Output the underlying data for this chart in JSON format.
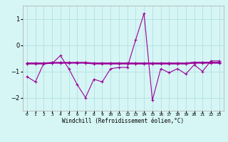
{
  "xlabel": "Windchill (Refroidissement éolien,°C)",
  "background_color": "#d6f5f5",
  "grid_color": "#aadddd",
  "line_color": "#990099",
  "x": [
    0,
    1,
    2,
    3,
    4,
    5,
    6,
    7,
    8,
    9,
    10,
    11,
    12,
    13,
    14,
    15,
    16,
    17,
    18,
    19,
    20,
    21,
    22,
    23
  ],
  "line1": [
    -1.2,
    -1.4,
    -0.7,
    -0.7,
    -0.4,
    -0.9,
    -1.5,
    -2.0,
    -1.3,
    -1.4,
    -0.9,
    -0.85,
    -0.85,
    0.2,
    1.2,
    -2.1,
    -0.9,
    -1.05,
    -0.9,
    -1.1,
    -0.75,
    -1.0,
    -0.6,
    -0.6
  ],
  "line2": [
    -0.68,
    -0.68,
    -0.68,
    -0.66,
    -0.66,
    -0.66,
    -0.66,
    -0.66,
    -0.68,
    -0.68,
    -0.68,
    -0.68,
    -0.68,
    -0.68,
    -0.68,
    -0.68,
    -0.68,
    -0.68,
    -0.68,
    -0.68,
    -0.65,
    -0.65,
    -0.65,
    -0.65
  ],
  "line3": [
    -0.7,
    -0.7,
    -0.7,
    -0.67,
    -0.67,
    -0.67,
    -0.67,
    -0.67,
    -0.7,
    -0.7,
    -0.7,
    -0.7,
    -0.7,
    -0.7,
    -0.7,
    -0.7,
    -0.7,
    -0.7,
    -0.7,
    -0.7,
    -0.67,
    -0.67,
    -0.67,
    -0.67
  ],
  "line4": [
    -0.72,
    -0.72,
    -0.72,
    -0.69,
    -0.69,
    -0.69,
    -0.69,
    -0.69,
    -0.72,
    -0.72,
    -0.72,
    -0.72,
    -0.72,
    -0.72,
    -0.72,
    -0.72,
    -0.72,
    -0.72,
    -0.72,
    -0.72,
    -0.69,
    -0.69,
    -0.69,
    -0.69
  ],
  "ylim": [
    -2.5,
    1.5
  ],
  "yticks": [
    -2,
    -1,
    0,
    1
  ],
  "figsize": [
    3.2,
    2.0
  ],
  "dpi": 100
}
